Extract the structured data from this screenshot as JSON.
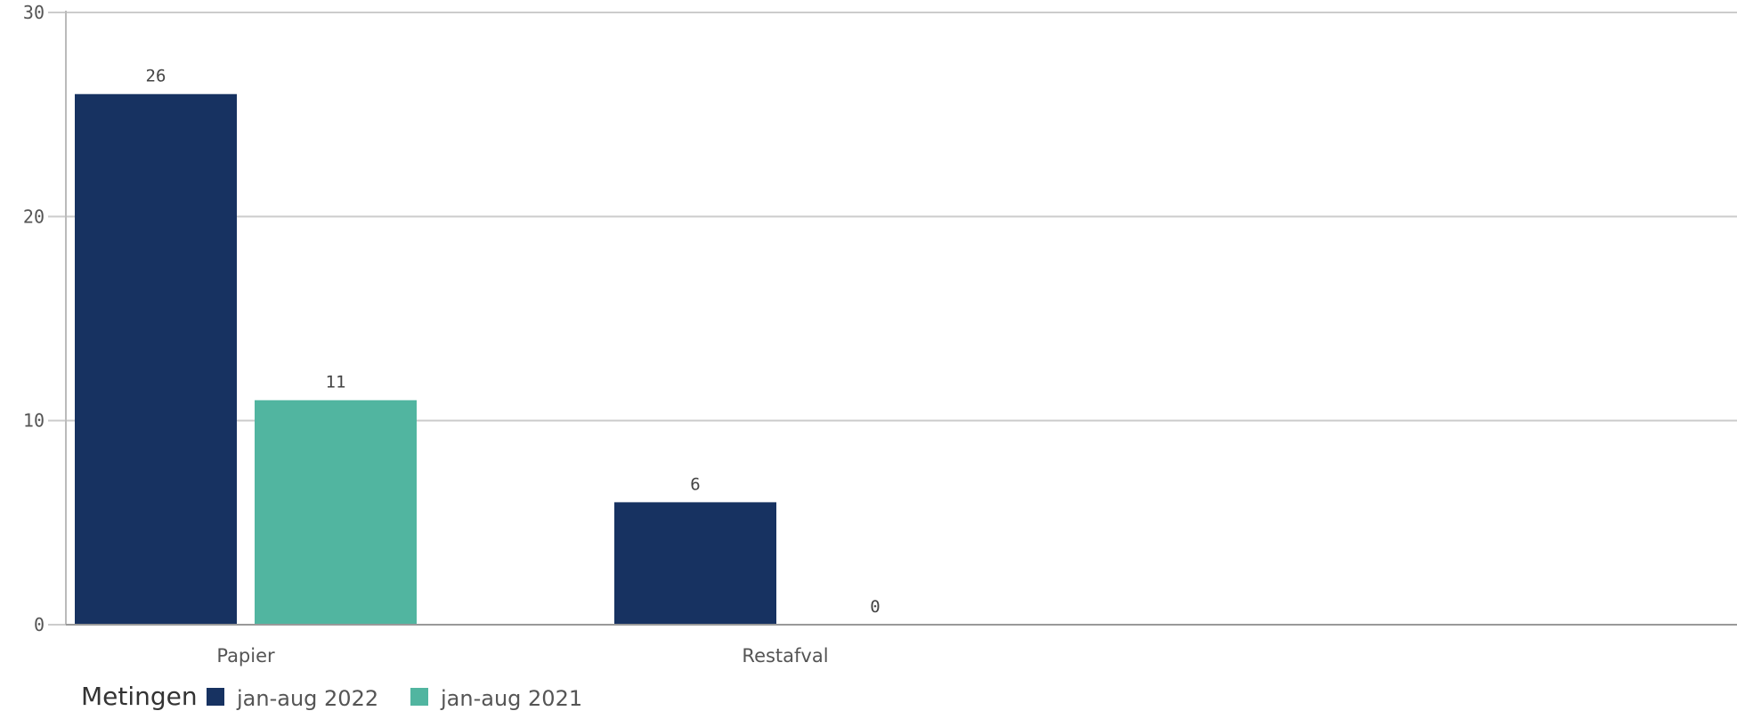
{
  "chart_data": {
    "type": "bar",
    "categories": [
      "Papier",
      "Restafval"
    ],
    "series": [
      {
        "name": "jan-aug 2022",
        "color": "#173261",
        "values": [
          26,
          6
        ],
        "labels": [
          "26",
          "6"
        ]
      },
      {
        "name": "jan-aug 2021",
        "color": "#51b5a0",
        "values": [
          11,
          0
        ],
        "labels": [
          "11",
          "0"
        ]
      }
    ],
    "ylim": [
      0,
      30
    ],
    "yticks": [
      "0",
      "10",
      "20",
      "30"
    ],
    "grid": true,
    "legend": {
      "title": "Metingen",
      "position": "bottom-left"
    }
  }
}
